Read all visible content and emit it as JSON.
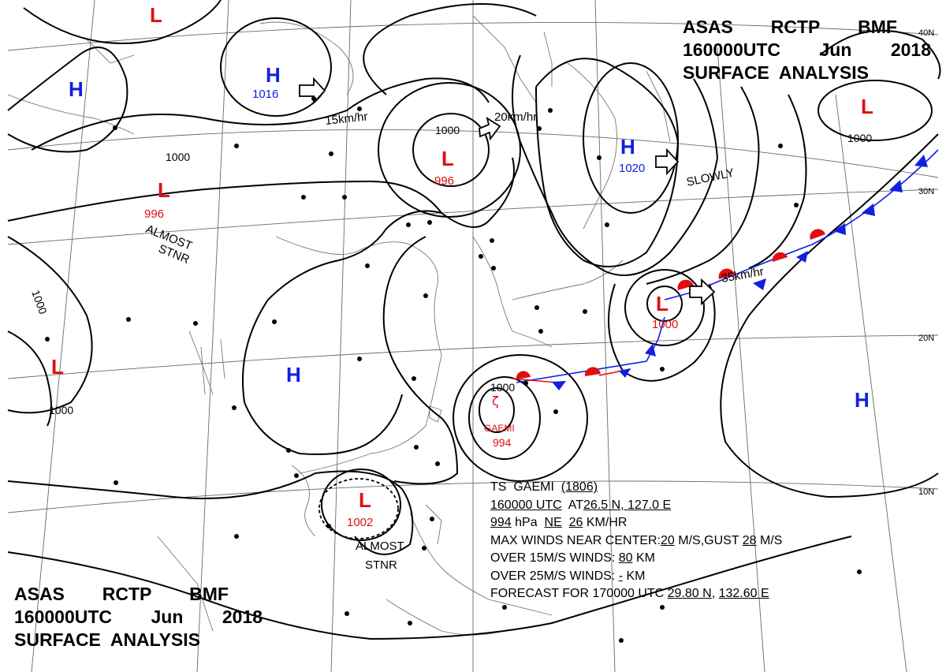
{
  "header_top": {
    "line1": [
      "ASAS",
      "RCTP",
      "BMF"
    ],
    "line2": [
      "160000UTC",
      "Jun",
      "2018"
    ],
    "line3": "SURFACE  ANALYSIS"
  },
  "header_bottom": {
    "line1": [
      "ASAS",
      "RCTP",
      "BMF"
    ],
    "line2": [
      "160000UTC",
      "Jun",
      "2018"
    ],
    "line3": "SURFACE  ANALYSIS"
  },
  "latitude_labels": [
    "40N",
    "30N",
    "20N",
    "10N"
  ],
  "pressure_centers": [
    {
      "type": "L",
      "value": "",
      "color": "#e01010"
    },
    {
      "type": "H",
      "value": "",
      "color": "#1020e0"
    },
    {
      "type": "H",
      "value": "1016",
      "color": "#1020e0"
    },
    {
      "type": "L",
      "value": "996",
      "color": "#e01010"
    },
    {
      "type": "L",
      "value": "996",
      "color": "#e01010"
    },
    {
      "type": "H",
      "value": "1020",
      "color": "#1020e0"
    },
    {
      "type": "L",
      "value": "",
      "color": "#e01010"
    },
    {
      "type": "L",
      "value": "",
      "color": "#e01010"
    },
    {
      "type": "L",
      "value": "1000",
      "color": "#e01010"
    },
    {
      "type": "H",
      "value": "",
      "color": "#1020e0"
    },
    {
      "type": "H",
      "value": "",
      "color": "#1020e0"
    },
    {
      "type": "L",
      "value": "1002",
      "color": "#e01010"
    }
  ],
  "typhoon": {
    "name": "GAEMI",
    "pressure": "994",
    "symbol": "ζ"
  },
  "isobar_labels": [
    "1000",
    "1000",
    "1000",
    "1000",
    "1000",
    "1000"
  ],
  "motion_labels": [
    "15km/hr",
    "20km/hr",
    "SLOWLY",
    "35km/hr"
  ],
  "notes": {
    "almost_stnr_1": [
      "ALMOST",
      "STNR"
    ],
    "almost_stnr_2": [
      "ALMOST",
      "STNR"
    ]
  },
  "storm_info": {
    "title": {
      "pre": "TS  GAEMI  ",
      "u": "(1806)"
    },
    "time": {
      "u1": "160000 UTC",
      "mid": "  AT",
      "u2": "26.5 N, 127.0 E"
    },
    "pressure": {
      "u1": "994",
      "a": " hPa  ",
      "u2": "NE",
      "b": "  ",
      "u3": "26",
      "c": " KM/HR"
    },
    "max_winds": {
      "a": "MAX WINDS NEAR CENTER:",
      "u1": "20",
      "b": " M/S,GUST ",
      "u2": "28",
      "c": " M/S"
    },
    "over15": {
      "a": "OVER 15M/S WINDS: ",
      "u": "80",
      "b": " KM"
    },
    "over25": {
      "a": "OVER 25M/S WINDS: ",
      "u": "-",
      "b": " KM"
    },
    "forecast": {
      "a": "FORECAST FOR 170000 UTC ",
      "u1": "29.80 N",
      "b": ", ",
      "u2": "132.60 E"
    }
  },
  "colors": {
    "high": "#1020e0",
    "low": "#e01010",
    "front_warm": "#e01010",
    "front_cold": "#1020e0",
    "isobar": "#000000",
    "grid": "#555555",
    "coast": "#666666"
  }
}
